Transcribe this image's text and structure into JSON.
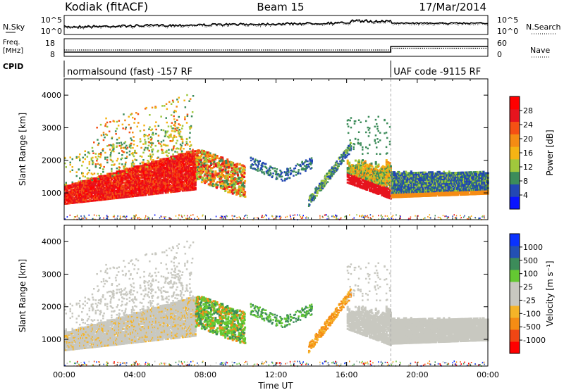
{
  "header": {
    "station": "Kodiak (fitACF)",
    "beam": "Beam 15",
    "date": "17/Mar/2014"
  },
  "noise_panel": {
    "left_label": "N.Sky",
    "right_label": "N.Search",
    "tick_top": "10^5",
    "tick_bottom": "10^0"
  },
  "freq_panel": {
    "left_label_line1": "Freq.",
    "left_label_line2": "[MHz]",
    "left_ticks": [
      "18",
      "8"
    ],
    "right_ticks": [
      "60",
      "0"
    ],
    "right_label": "Nave"
  },
  "cpid_panel": {
    "label": "CPID",
    "mode1": "normalsound (fast) -157 RF",
    "mode2": "UAF code -9115 RF"
  },
  "colors": {
    "power": [
      "#0a14ff",
      "#2347b4",
      "#3c8c5a",
      "#a0c83c",
      "#f5b414",
      "#f58c14",
      "#f55014",
      "#e6141e",
      "#ff0000"
    ],
    "velocity": [
      "#ff0000",
      "#f04614",
      "#f58c14",
      "#f5b428",
      "#c8c8c0",
      "#c8c8c0",
      "#64c832",
      "#3c8c5a",
      "#2350b4",
      "#0a32ff"
    ]
  },
  "chart_data": [
    {
      "type": "heatmap",
      "name": "power-panel",
      "ylabel": "Slant Range [km]",
      "ylim": [
        180,
        4500
      ],
      "yticks": [
        "1000",
        "2000",
        "3000",
        "4000"
      ],
      "xlim_hours": [
        0,
        24
      ],
      "colorbar": {
        "label": "Power [dB]",
        "ticks": [
          "4",
          "8",
          "12",
          "16",
          "20",
          "24",
          "28"
        ],
        "range": [
          0,
          32
        ]
      },
      "mode_change_hour": 18.5
    },
    {
      "type": "heatmap",
      "name": "velocity-panel",
      "ylabel": "Slant Range [km]",
      "ylim": [
        180,
        4500
      ],
      "yticks": [
        "1000",
        "2000",
        "3000",
        "4000"
      ],
      "xlim_hours": [
        0,
        24
      ],
      "colorbar": {
        "label": "Velocity [m s⁻¹]",
        "ticks": [
          "-1000",
          "-500",
          "-100",
          "-25",
          "25",
          "100",
          "500",
          "1000"
        ]
      },
      "xlabel": "Time UT",
      "xticks": [
        "00:00",
        "04:00",
        "08:00",
        "12:00",
        "16:00",
        "20:00",
        "00:00"
      ]
    }
  ]
}
